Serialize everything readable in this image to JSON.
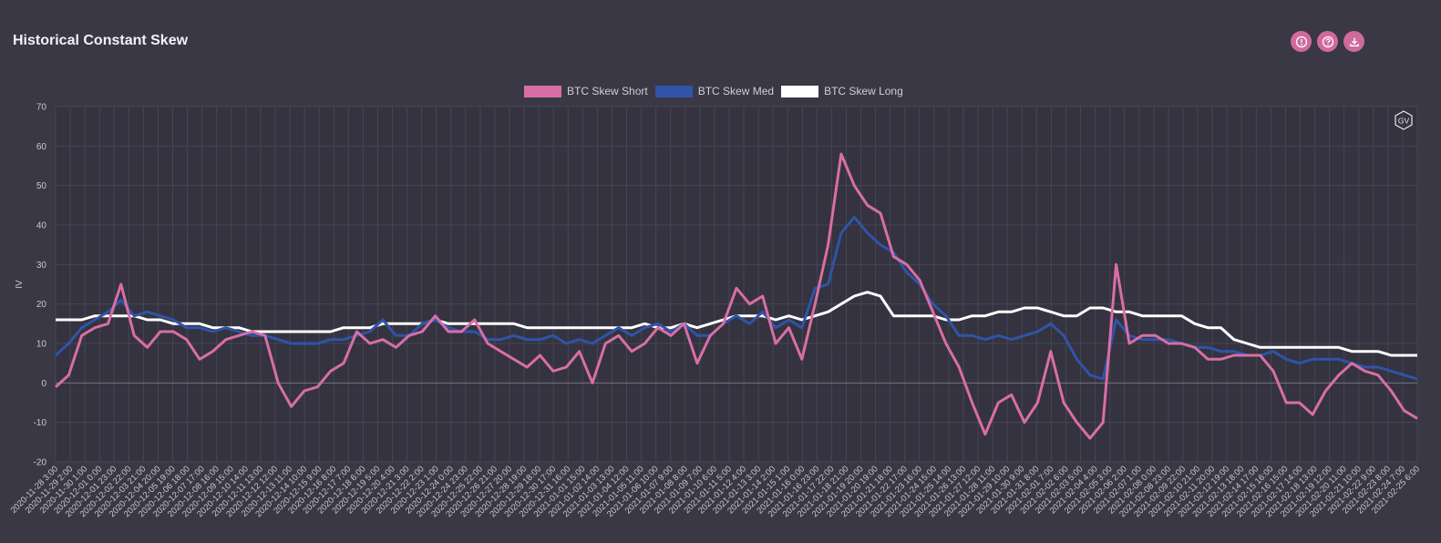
{
  "page": {
    "title": "Historical Constant Skew"
  },
  "toolbar": {
    "buttons": [
      {
        "name": "info-button",
        "icon": "info-icon"
      },
      {
        "name": "help-button",
        "icon": "question-icon"
      },
      {
        "name": "download-button",
        "icon": "download-icon"
      }
    ],
    "accent": "#d06a9e"
  },
  "badge": {
    "text": "GV"
  },
  "chart_data": {
    "type": "line",
    "ylabel": "IV",
    "xlabel": "",
    "ylim": [
      -20,
      70
    ],
    "yticks": [
      -20,
      -10,
      0,
      10,
      20,
      30,
      40,
      50,
      60,
      70
    ],
    "grid": true,
    "legend_position": "top-center",
    "xticks": [
      "2020-11-28 3:00",
      "2020-11-29 2:00",
      "2020-11-30 1:00",
      "2020-12-01 0:00",
      "2020-12-01 23:00",
      "2020-12-02 22:00",
      "2020-12-03 21:00",
      "2020-12-04 20:00",
      "2020-12-05 19:00",
      "2020-12-06 18:00",
      "2020-12-07 17:00",
      "2020-12-08 16:00",
      "2020-12-09 15:00",
      "2020-12-10 14:00",
      "2020-12-11 13:00",
      "2020-12-12 12:00",
      "2020-12-13 11:00",
      "2020-12-14 10:00",
      "2020-12-15 9:00",
      "2020-12-16 8:00",
      "2020-12-17 7:00",
      "2020-12-18 6:00",
      "2020-12-19 5:00",
      "2020-12-20 4:00",
      "2020-12-21 3:00",
      "2020-12-22 2:00",
      "2020-12-23 1:00",
      "2020-12-24 0:00",
      "2020-12-24 23:00",
      "2020-12-25 22:00",
      "2020-12-26 21:00",
      "2020-12-27 20:00",
      "2020-12-28 19:00",
      "2020-12-29 18:00",
      "2020-12-30 17:00",
      "2020-12-31 16:00",
      "2021-01-01 15:00",
      "2021-01-02 14:00",
      "2021-01-03 13:00",
      "2021-01-04 12:00",
      "2021-01-05 11:00",
      "2021-01-06 10:00",
      "2021-01-07 9:00",
      "2021-01-08 8:00",
      "2021-01-09 7:00",
      "2021-01-10 6:00",
      "2021-01-11 5:00",
      "2021-01-12 4:00",
      "2021-01-13 3:00",
      "2021-01-14 2:00",
      "2021-01-15 1:00",
      "2021-01-16 0:00",
      "2021-01-16 23:00",
      "2021-01-17 22:00",
      "2021-01-18 21:00",
      "2021-01-19 20:00",
      "2021-01-20 19:00",
      "2021-01-21 18:00",
      "2021-01-22 17:00",
      "2021-01-23 16:00",
      "2021-01-24 15:00",
      "2021-01-25 14:00",
      "2021-01-26 13:00",
      "2021-01-27 12:00",
      "2021-01-28 11:00",
      "2021-01-29 10:00",
      "2021-01-30 9:00",
      "2021-01-31 8:00",
      "2021-02-01 7:00",
      "2021-02-02 6:00",
      "2021-02-03 5:00",
      "2021-02-04 4:00",
      "2021-02-05 3:00",
      "2021-02-06 2:00",
      "2021-02-07 1:00",
      "2021-02-08 0:00",
      "2021-02-08 23:00",
      "2021-02-09 22:00",
      "2021-02-10 21:00",
      "2021-02-11 20:00",
      "2021-02-12 19:00",
      "2021-02-13 18:00",
      "2021-02-14 17:00",
      "2021-02-15 16:00",
      "2021-02-16 15:00",
      "2021-02-17 14:00",
      "2021-02-18 13:00",
      "2021-02-19 12:00",
      "2021-02-20 11:00",
      "2021-02-21 10:00",
      "2021-02-22 9:00",
      "2021-02-23 8:00",
      "2021-02-24 7:00",
      "2021-02-25 6:00"
    ],
    "series": [
      {
        "name": "BTC Skew Short",
        "color": "#d96ea6",
        "values": [
          -1,
          2,
          12,
          14,
          15,
          25,
          12,
          9,
          13,
          13,
          11,
          6,
          8,
          11,
          12,
          13,
          12,
          0,
          -6,
          -2,
          -1,
          3,
          5,
          13,
          10,
          11,
          9,
          12,
          13,
          17,
          13,
          13,
          16,
          10,
          8,
          6,
          4,
          7,
          3,
          4,
          8,
          0,
          10,
          12,
          8,
          10,
          14,
          12,
          15,
          5,
          12,
          15,
          24,
          20,
          22,
          10,
          14,
          6,
          20,
          35,
          58,
          50,
          45,
          43,
          32,
          30,
          26,
          18,
          10,
          4,
          -5,
          -13,
          -5,
          -3,
          -10,
          -5,
          8,
          -5,
          -10,
          -14,
          -10,
          30,
          10,
          12,
          12,
          10,
          10,
          9,
          6,
          6,
          7,
          7,
          7,
          3,
          -5,
          -5,
          -8,
          -2,
          2,
          5,
          3,
          2,
          -2,
          -7,
          -9
        ]
      },
      {
        "name": "BTC Skew Med",
        "color": "#2f54a8",
        "values": [
          7,
          10,
          14,
          16,
          18,
          21,
          17,
          18,
          17,
          16,
          14,
          14,
          13,
          14,
          13,
          12,
          12,
          11,
          10,
          10,
          10,
          11,
          11,
          12,
          13,
          16,
          12,
          12,
          15,
          16,
          14,
          13,
          13,
          11,
          11,
          12,
          11,
          11,
          12,
          10,
          11,
          10,
          12,
          14,
          12,
          14,
          15,
          13,
          15,
          12,
          12,
          15,
          17,
          15,
          18,
          14,
          16,
          14,
          24,
          25,
          38,
          42,
          38,
          35,
          33,
          28,
          25,
          20,
          17,
          12,
          12,
          11,
          12,
          11,
          12,
          13,
          15,
          12,
          6,
          2,
          1,
          16,
          12,
          11,
          11,
          11,
          10,
          9,
          9,
          8,
          8,
          7,
          7,
          8,
          6,
          5,
          6,
          6,
          6,
          5,
          4,
          4,
          3,
          2,
          1
        ]
      },
      {
        "name": "BTC Skew Long",
        "color": "#ffffff",
        "values": [
          16,
          16,
          16,
          17,
          17,
          17,
          17,
          16,
          16,
          15,
          15,
          15,
          14,
          14,
          14,
          13,
          13,
          13,
          13,
          13,
          13,
          13,
          14,
          14,
          14,
          15,
          15,
          15,
          15,
          16,
          15,
          15,
          15,
          15,
          15,
          15,
          14,
          14,
          14,
          14,
          14,
          14,
          14,
          14,
          14,
          15,
          14,
          14,
          15,
          14,
          15,
          16,
          17,
          17,
          17,
          16,
          17,
          16,
          17,
          18,
          20,
          22,
          23,
          22,
          17,
          17,
          17,
          17,
          16,
          16,
          17,
          17,
          18,
          18,
          19,
          19,
          18,
          17,
          17,
          19,
          19,
          18,
          18,
          17,
          17,
          17,
          17,
          15,
          14,
          14,
          11,
          10,
          9,
          9,
          9,
          9,
          9,
          9,
          9,
          8,
          8,
          8,
          7,
          7,
          7
        ]
      }
    ]
  }
}
